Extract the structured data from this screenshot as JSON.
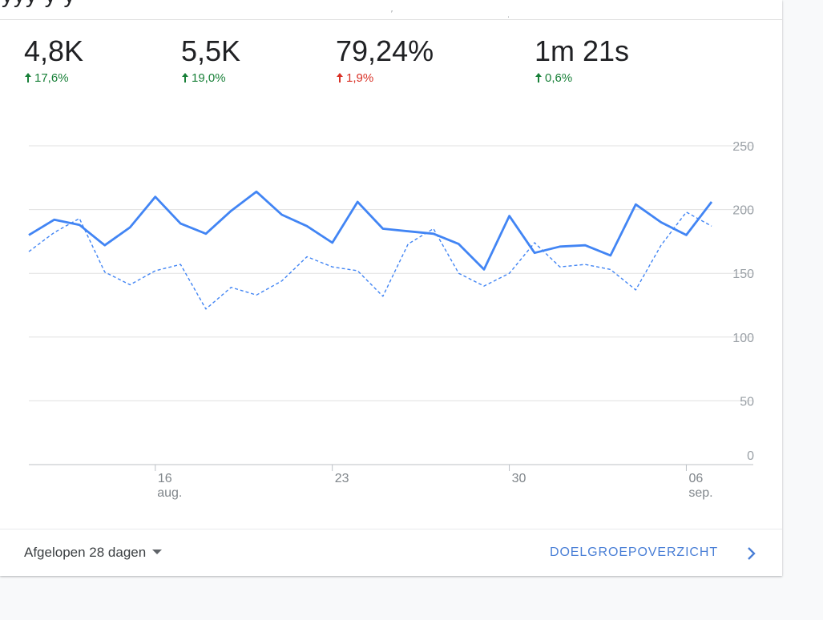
{
  "metrics": [
    {
      "value": "4,8K",
      "change": "17,6%",
      "direction": "up",
      "status_color": "#188038"
    },
    {
      "value": "5,5K",
      "change": "19,0%",
      "direction": "up",
      "status_color": "#188038"
    },
    {
      "value": "79,24%",
      "change": "1,9%",
      "direction": "up",
      "status_color": "#d93025"
    },
    {
      "value": "1m 21s",
      "change": "0,6%",
      "direction": "up",
      "status_color": "#188038"
    }
  ],
  "chart_data": {
    "type": "line",
    "grid": true,
    "y_axis_position": "right",
    "ylim": [
      0,
      250
    ],
    "y_ticks": [
      0,
      50,
      100,
      150,
      200,
      250
    ],
    "x_tick_labels": [
      {
        "day": "16",
        "month": "aug.",
        "index": 5
      },
      {
        "day": "23",
        "month": "",
        "index": 12
      },
      {
        "day": "30",
        "month": "",
        "index": 19
      },
      {
        "day": "06",
        "month": "sep.",
        "index": 26
      }
    ],
    "series": [
      {
        "style": "solid",
        "color": "#4285f4",
        "values": [
          180,
          192,
          188,
          172,
          186,
          210,
          189,
          181,
          199,
          214,
          196,
          187,
          174,
          206,
          185,
          183,
          181,
          173,
          153,
          195,
          166,
          171,
          172,
          164,
          204,
          190,
          180,
          206
        ]
      },
      {
        "style": "dashed",
        "color": "#4285f4",
        "values": [
          167,
          182,
          193,
          151,
          141,
          152,
          157,
          122,
          139,
          133,
          144,
          163,
          155,
          152,
          132,
          173,
          185,
          150,
          140,
          150,
          174,
          155,
          157,
          153,
          137,
          172,
          198,
          187
        ]
      }
    ]
  },
  "footer": {
    "period_label": "Afgelopen 28 dagen",
    "overview_label": "DOELGROEPOVERZICHT"
  },
  "icons": {
    "change_arrow": "arrow-up-icon",
    "period_dropdown": "caret-down-icon",
    "overview_link": "chevron-right-icon"
  }
}
